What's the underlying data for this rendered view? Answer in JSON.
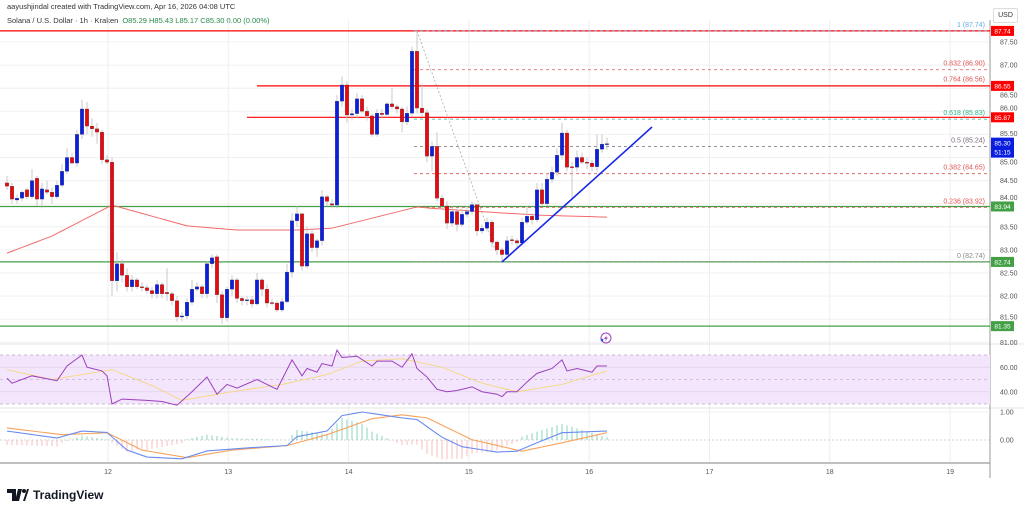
{
  "header": {
    "credit": "aayushjindal created with TradingView.com, Apr 16, 2026 04:08 UTC",
    "symbol": "Solana / U.S. Dollar · 1h · Kraken",
    "ohlc": "O85.29 H85.43 L85.17 C85.30 0.00 (0.00%)",
    "currency": "USD"
  },
  "logo": {
    "text": "TradingView"
  },
  "chart_data": {
    "type": "candlestick",
    "interval": "1h",
    "colors": {
      "up": "#0a1ee0",
      "down": "#e8090f",
      "ma": "#f26b6b",
      "rsi": "#9c3fbf",
      "rsi_ma": "#f5d76e",
      "macd": "#6a8cf0",
      "signal": "#f7a35c",
      "hist_up": "#2bb38a",
      "hist_down": "#f28c8c",
      "support": "#43a047",
      "resistance": "#ff0000",
      "trendline": "#1428e6"
    },
    "yaxis": {
      "ticks": [
        "87.50",
        "87.00",
        "86.50",
        "86.00",
        "85.50",
        "85.00",
        "84.50",
        "84.00",
        "83.50",
        "83.00",
        "82.50",
        "82.00",
        "81.50",
        "81.00"
      ]
    },
    "xaxis": {
      "ticks": [
        "12",
        "13",
        "14",
        "15",
        "16",
        "17",
        "18",
        "19"
      ]
    },
    "candles": [
      [
        84.45,
        84.6,
        84.3,
        84.38
      ],
      [
        84.38,
        84.45,
        84.0,
        84.1
      ],
      [
        84.08,
        84.2,
        84.0,
        84.12
      ],
      [
        84.12,
        84.3,
        84.05,
        84.25
      ],
      [
        84.3,
        84.35,
        84.1,
        84.15
      ],
      [
        84.15,
        84.75,
        84.1,
        84.5
      ],
      [
        84.55,
        84.6,
        83.95,
        84.1
      ],
      [
        84.1,
        84.45,
        83.9,
        84.32
      ],
      [
        84.3,
        84.5,
        84.2,
        84.25
      ],
      [
        84.25,
        84.35,
        84.0,
        84.15
      ],
      [
        84.15,
        84.5,
        84.1,
        84.4
      ],
      [
        84.4,
        84.85,
        84.35,
        84.7
      ],
      [
        84.7,
        85.2,
        84.65,
        85.0
      ],
      [
        85.0,
        85.1,
        84.85,
        84.88
      ],
      [
        84.88,
        85.6,
        84.8,
        85.5
      ],
      [
        85.5,
        86.25,
        85.4,
        86.05
      ],
      [
        86.05,
        86.2,
        85.5,
        85.68
      ],
      [
        85.68,
        85.85,
        85.45,
        85.62
      ],
      [
        85.62,
        85.75,
        85.3,
        85.55
      ],
      [
        85.55,
        85.6,
        84.85,
        84.95
      ],
      [
        84.95,
        85.05,
        84.85,
        84.9
      ],
      [
        84.9,
        85.0,
        82.0,
        82.33
      ],
      [
        82.33,
        82.95,
        82.1,
        82.7
      ],
      [
        82.7,
        82.8,
        82.3,
        82.45
      ],
      [
        82.45,
        82.6,
        82.1,
        82.2
      ],
      [
        82.2,
        82.45,
        82.1,
        82.35
      ],
      [
        82.35,
        82.4,
        82.15,
        82.2
      ],
      [
        82.2,
        82.3,
        82.1,
        82.18
      ],
      [
        82.18,
        82.25,
        82.05,
        82.12
      ],
      [
        82.12,
        82.2,
        81.95,
        82.05
      ],
      [
        82.05,
        82.35,
        81.95,
        82.25
      ],
      [
        82.25,
        82.3,
        81.95,
        82.05
      ],
      [
        82.08,
        82.6,
        81.9,
        82.05
      ],
      [
        82.05,
        82.1,
        81.8,
        81.9
      ],
      [
        81.9,
        82.0,
        81.45,
        81.55
      ],
      [
        81.55,
        81.65,
        81.45,
        81.57
      ],
      [
        81.57,
        81.95,
        81.5,
        81.87
      ],
      [
        81.87,
        82.35,
        81.8,
        82.15
      ],
      [
        82.15,
        82.3,
        82.1,
        82.2
      ],
      [
        82.2,
        82.25,
        81.95,
        82.05
      ],
      [
        82.05,
        82.75,
        81.95,
        82.7
      ],
      [
        82.7,
        82.9,
        82.6,
        82.83
      ],
      [
        82.85,
        82.9,
        81.85,
        82.03
      ],
      [
        82.03,
        82.1,
        81.4,
        81.53
      ],
      [
        81.53,
        82.2,
        81.45,
        82.15
      ],
      [
        82.15,
        82.45,
        82.0,
        82.35
      ],
      [
        82.35,
        82.4,
        81.85,
        81.95
      ],
      [
        81.95,
        82.0,
        81.8,
        81.9
      ],
      [
        81.9,
        82.0,
        81.8,
        81.92
      ],
      [
        81.92,
        82.0,
        81.75,
        81.83
      ],
      [
        81.83,
        82.5,
        81.8,
        82.35
      ],
      [
        82.35,
        82.4,
        82.0,
        82.15
      ],
      [
        82.15,
        82.25,
        81.75,
        81.85
      ],
      [
        81.86,
        81.95,
        81.8,
        81.85
      ],
      [
        81.85,
        81.9,
        81.65,
        81.7
      ],
      [
        81.7,
        81.95,
        81.65,
        81.88
      ],
      [
        81.88,
        82.7,
        81.85,
        82.52
      ],
      [
        82.52,
        83.8,
        82.4,
        83.63
      ],
      [
        83.63,
        83.95,
        83.5,
        83.78
      ],
      [
        83.78,
        83.8,
        82.55,
        82.65
      ],
      [
        82.65,
        83.5,
        82.6,
        83.35
      ],
      [
        83.35,
        83.45,
        82.95,
        83.05
      ],
      [
        83.05,
        83.25,
        82.85,
        83.2
      ],
      [
        83.2,
        84.3,
        83.1,
        84.15
      ],
      [
        84.15,
        84.2,
        83.95,
        84.05
      ],
      [
        84.0,
        84.1,
        83.9,
        83.97
      ],
      [
        83.97,
        86.35,
        83.9,
        86.22
      ],
      [
        86.22,
        86.75,
        86.1,
        86.57
      ],
      [
        86.57,
        86.65,
        85.75,
        85.92
      ],
      [
        85.92,
        86.05,
        85.8,
        85.95
      ],
      [
        85.95,
        86.4,
        85.85,
        86.27
      ],
      [
        86.27,
        86.35,
        85.95,
        86.0
      ],
      [
        86.0,
        86.1,
        85.8,
        85.9
      ],
      [
        85.9,
        85.95,
        85.45,
        85.5
      ],
      [
        85.5,
        86.05,
        85.45,
        85.96
      ],
      [
        85.96,
        86.05,
        85.85,
        85.93
      ],
      [
        85.93,
        86.2,
        85.85,
        86.16
      ],
      [
        86.16,
        86.5,
        86.05,
        86.1
      ],
      [
        86.1,
        86.15,
        85.95,
        86.05
      ],
      [
        86.05,
        86.1,
        85.55,
        85.77
      ],
      [
        85.77,
        86.1,
        85.7,
        85.96
      ],
      [
        85.96,
        87.4,
        85.9,
        87.3
      ],
      [
        87.3,
        87.74,
        85.95,
        86.07
      ],
      [
        86.07,
        86.6,
        85.9,
        85.97
      ],
      [
        85.97,
        86.05,
        84.9,
        85.03
      ],
      [
        85.03,
        85.35,
        84.7,
        85.24
      ],
      [
        85.24,
        85.55,
        84.05,
        84.12
      ],
      [
        84.12,
        84.2,
        83.9,
        83.95
      ],
      [
        83.95,
        84.05,
        83.45,
        83.58
      ],
      [
        83.58,
        83.95,
        83.5,
        83.83
      ],
      [
        83.83,
        83.9,
        83.4,
        83.55
      ],
      [
        83.55,
        83.9,
        83.5,
        83.77
      ],
      [
        83.77,
        83.95,
        83.7,
        83.83
      ],
      [
        83.83,
        84.05,
        83.75,
        83.98
      ],
      [
        83.98,
        84.0,
        83.3,
        83.41
      ],
      [
        83.41,
        83.55,
        83.35,
        83.47
      ],
      [
        83.47,
        83.7,
        83.4,
        83.6
      ],
      [
        83.6,
        83.65,
        83.05,
        83.17
      ],
      [
        83.17,
        83.2,
        82.9,
        83.0
      ],
      [
        83.0,
        83.05,
        82.75,
        82.9
      ],
      [
        82.9,
        83.3,
        82.8,
        83.2
      ],
      [
        83.22,
        83.3,
        83.1,
        83.2
      ],
      [
        83.2,
        83.25,
        83.05,
        83.15
      ],
      [
        83.15,
        83.7,
        83.1,
        83.6
      ],
      [
        83.6,
        83.95,
        83.55,
        83.73
      ],
      [
        83.73,
        83.8,
        83.55,
        83.65
      ],
      [
        83.65,
        84.45,
        83.6,
        84.3
      ],
      [
        84.3,
        84.45,
        83.95,
        84.0
      ],
      [
        84.0,
        84.65,
        83.95,
        84.53
      ],
      [
        84.53,
        84.8,
        84.45,
        84.68
      ],
      [
        84.68,
        85.2,
        84.6,
        85.05
      ],
      [
        85.05,
        85.75,
        84.95,
        85.53
      ],
      [
        85.53,
        85.6,
        84.7,
        84.79
      ],
      [
        84.8,
        84.9,
        84.1,
        84.79
      ],
      [
        84.79,
        85.15,
        84.7,
        85.0
      ],
      [
        85.0,
        85.1,
        84.85,
        84.9
      ],
      [
        84.9,
        85.0,
        84.75,
        84.88
      ],
      [
        84.88,
        84.95,
        84.7,
        84.8
      ],
      [
        84.8,
        85.5,
        84.7,
        85.18
      ],
      [
        85.18,
        85.5,
        85.1,
        85.29
      ],
      [
        85.29,
        85.43,
        85.17,
        85.3
      ]
    ],
    "moving_average": [
      [
        1,
        82.93
      ],
      [
        10,
        83.3
      ],
      [
        22,
        83.97
      ],
      [
        37,
        83.52
      ],
      [
        47,
        83.43
      ],
      [
        59,
        83.43
      ],
      [
        66,
        83.47
      ],
      [
        83,
        83.93
      ],
      [
        86,
        83.9
      ],
      [
        100,
        83.8
      ],
      [
        108,
        83.75
      ],
      [
        121,
        83.71
      ]
    ],
    "horizontal_levels": [
      {
        "price": 87.74,
        "label": "87.74",
        "color": "#ff0000",
        "from_candle": 0
      },
      {
        "price": 86.55,
        "label": "86.55",
        "color": "#ff0000",
        "from_candle": 51
      },
      {
        "price": 85.87,
        "label": "85.87",
        "color": "#ff0000",
        "from_candle": 49
      },
      {
        "price": 83.94,
        "label": "83.94",
        "color": "#43a047",
        "from_candle": 0
      },
      {
        "price": 82.74,
        "label": "82.74",
        "color": "#43a047",
        "from_candle": 0
      },
      {
        "price": 81.35,
        "label": "81.35",
        "color": "#43a047",
        "from_candle": 0
      }
    ],
    "current_price": {
      "label": "85.30",
      "countdown": "51:15",
      "color": "#0a1ee0"
    },
    "fibonacci": {
      "from_candle": 83,
      "levels": [
        {
          "ratio": "1",
          "price": 87.74,
          "label": "1 (87.74)",
          "color": "#64a8e0"
        },
        {
          "ratio": "0.832",
          "price": 86.9,
          "label": "0.832 (86.90)",
          "color": "#e05555"
        },
        {
          "ratio": "0.764",
          "price": 86.56,
          "label": "0.764 (86.56)",
          "color": "#e05555"
        },
        {
          "ratio": "0.618",
          "price": 85.83,
          "label": "0.618 (85.83)",
          "color": "#2bb38a"
        },
        {
          "ratio": "0.5",
          "price": 85.24,
          "label": "0.5 (85.24)",
          "color": "#7a6a7a"
        },
        {
          "ratio": "0.382",
          "price": 84.65,
          "label": "0.382 (84.65)",
          "color": "#e05555"
        },
        {
          "ratio": "0.236",
          "price": 83.92,
          "label": "0.236 (83.92)",
          "color": "#e05555"
        },
        {
          "ratio": "0",
          "price": 82.74,
          "label": "0 (82.74)",
          "color": "#888888"
        }
      ]
    },
    "fib_anchor_line": {
      "from": [
        83,
        87.74
      ],
      "to": [
        99,
        82.9
      ]
    },
    "trendline": {
      "from": [
        100,
        82.74
      ],
      "to": [
        130,
        85.66
      ]
    },
    "rsi": {
      "ticks": [
        "60.00",
        "40.00"
      ],
      "upper": 70,
      "lower": 30,
      "mid": 50,
      "values": [
        [
          1,
          51
        ],
        [
          2,
          47
        ],
        [
          6,
          53
        ],
        [
          11,
          49
        ],
        [
          13,
          61
        ],
        [
          16,
          70
        ],
        [
          17,
          60
        ],
        [
          20,
          57
        ],
        [
          21,
          53
        ],
        [
          22,
          30
        ],
        [
          24,
          34
        ],
        [
          29,
          33
        ],
        [
          32,
          32
        ],
        [
          35,
          29
        ],
        [
          38,
          40
        ],
        [
          41,
          52
        ],
        [
          43,
          38
        ],
        [
          45,
          46
        ],
        [
          47,
          43
        ],
        [
          51,
          50
        ],
        [
          55,
          42
        ],
        [
          58,
          66
        ],
        [
          60,
          53
        ],
        [
          61,
          59
        ],
        [
          63,
          56
        ],
        [
          64,
          63
        ],
        [
          66,
          61
        ],
        [
          67,
          74
        ],
        [
          68,
          68
        ],
        [
          71,
          69
        ],
        [
          74,
          61
        ],
        [
          75,
          65
        ],
        [
          78,
          65
        ],
        [
          80,
          60
        ],
        [
          82,
          71
        ],
        [
          83,
          59
        ],
        [
          85,
          52
        ],
        [
          87,
          42
        ],
        [
          89,
          40
        ],
        [
          91,
          41
        ],
        [
          94,
          44
        ],
        [
          96,
          40
        ],
        [
          99,
          38
        ],
        [
          100,
          36
        ],
        [
          101,
          40
        ],
        [
          103,
          40
        ],
        [
          105,
          48
        ],
        [
          107,
          55
        ],
        [
          110,
          59
        ],
        [
          112,
          66
        ],
        [
          113,
          57
        ],
        [
          115,
          59
        ],
        [
          118,
          56
        ],
        [
          119,
          61
        ],
        [
          121,
          61
        ]
      ],
      "ma": [
        [
          1,
          58
        ],
        [
          10,
          50
        ],
        [
          22,
          58
        ],
        [
          30,
          45
        ],
        [
          36,
          33
        ],
        [
          46,
          40
        ],
        [
          56,
          46
        ],
        [
          65,
          54
        ],
        [
          72,
          65
        ],
        [
          80,
          67
        ],
        [
          88,
          60
        ],
        [
          96,
          47
        ],
        [
          103,
          40
        ],
        [
          112,
          46
        ],
        [
          121,
          57
        ]
      ]
    },
    "macd": {
      "ticks": [
        "1.00",
        "0.00"
      ],
      "macd": [
        [
          1,
          0.32
        ],
        [
          11,
          0.07
        ],
        [
          16,
          0.32
        ],
        [
          21,
          0.27
        ],
        [
          25,
          -0.36
        ],
        [
          29,
          -0.61
        ],
        [
          36,
          -0.67
        ],
        [
          41,
          -0.39
        ],
        [
          50,
          -0.27
        ],
        [
          57,
          -0.2
        ],
        [
          59,
          0.12
        ],
        [
          65,
          0.32
        ],
        [
          68,
          0.87
        ],
        [
          72,
          1.0
        ],
        [
          80,
          0.79
        ],
        [
          83,
          0.73
        ],
        [
          88,
          0.1
        ],
        [
          92,
          -0.24
        ],
        [
          99,
          -0.43
        ],
        [
          103,
          -0.4
        ],
        [
          107,
          -0.1
        ],
        [
          112,
          0.26
        ],
        [
          121,
          0.32
        ]
      ],
      "signal": [
        [
          1,
          0.43
        ],
        [
          12,
          0.19
        ],
        [
          21,
          0.26
        ],
        [
          28,
          -0.36
        ],
        [
          37,
          -0.63
        ],
        [
          46,
          -0.36
        ],
        [
          57,
          -0.2
        ],
        [
          65,
          0.19
        ],
        [
          74,
          0.76
        ],
        [
          80,
          0.9
        ],
        [
          85,
          0.79
        ],
        [
          94,
          0.01
        ],
        [
          104,
          -0.4
        ],
        [
          112,
          -0.1
        ],
        [
          121,
          0.26
        ]
      ]
    },
    "alert_icon": "lightning-alert-icon"
  }
}
